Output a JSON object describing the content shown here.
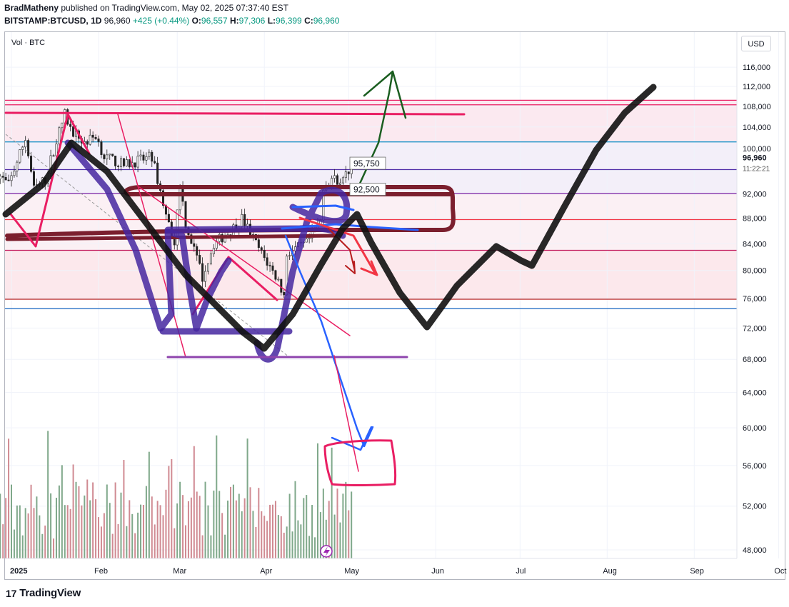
{
  "header": {
    "author": "BradMatheny",
    "publish_text": "published on TradingView.com, May 02, 2025 07:37:40 EST",
    "symbol": "BITSTAMP:BTCUSD, 1D",
    "last": "96,960",
    "change": "+425 (+0.44%)",
    "o_label": "O:",
    "o_val": "96,557",
    "h_label": "H:",
    "h_val": "97,306",
    "l_label": "L:",
    "l_val": "96,399",
    "c_label": "C:",
    "c_val": "96,960"
  },
  "volume_label": "Vol · BTC",
  "currency_button": "USD",
  "brand": "TradingView",
  "colors": {
    "up": "#089981",
    "down": "#f23645",
    "volume_up": "#7fa88a",
    "volume_down": "#d08a92",
    "zone_pink": "#fce8ef",
    "zone_lavender": "#f1eef9"
  },
  "chart_data": {
    "type": "candlestick",
    "title": "",
    "ylabel": "",
    "xlabel": "",
    "y_scale": "log",
    "ylim": [
      46500,
      118000
    ],
    "y_ticks": [
      48000,
      52000,
      56000,
      60000,
      64000,
      68000,
      72000,
      76000,
      80000,
      84000,
      88000,
      92000,
      96000,
      100000,
      104000,
      108000,
      112000,
      116000
    ],
    "y_tick_labels": [
      "48,000",
      "52,000",
      "56,000",
      "60,000",
      "64,000",
      "68,000",
      "72,000",
      "76,000",
      "80,000",
      "84,000",
      "88,000",
      "92,000",
      "",
      "100,000",
      "104,000",
      "108,000",
      "112,000",
      "116,000"
    ],
    "x_ticks": [
      "2025",
      "Feb",
      "Mar",
      "Apr",
      "May",
      "Jun",
      "Jul",
      "Aug",
      "Sep",
      "Oct"
    ],
    "x_range": [
      "2024-12-27",
      "2025-10-12"
    ],
    "last_price": {
      "label": "96,960",
      "countdown": "11:22:21",
      "value": 96960
    },
    "price_labels": [
      {
        "text": "95,750",
        "value": 95750
      },
      {
        "text": "92,500",
        "value": 92500
      }
    ],
    "horizontal_levels": [
      {
        "value": 109200,
        "color": "#e91e63"
      },
      {
        "value": 108300,
        "color": "#e91e63"
      },
      {
        "value": 101200,
        "color": "#2196c8"
      },
      {
        "value": 96200,
        "color": "#512da8"
      },
      {
        "value": 92100,
        "color": "#7b1fa2"
      },
      {
        "value": 87800,
        "color": "#f23645"
      },
      {
        "value": 83000,
        "color": "#c2185b"
      },
      {
        "value": 75900,
        "color": "#b71c1c"
      },
      {
        "value": 74600,
        "color": "#1565c0"
      }
    ],
    "candles_summary": {
      "start_date": "2024-12-27",
      "end_date": "2025-05-02",
      "low": 74500,
      "high": 109300,
      "last_close": 96960
    },
    "volume_summary": {
      "bars": 127,
      "max_relative": 1.0
    },
    "annotations": [
      {
        "type": "projection",
        "color": "#111111",
        "path_dates": [
          "2025-05-13",
          "2025-06-04",
          "2025-06-20",
          "2025-07-02",
          "2025-09-10"
        ],
        "path_values": [
          94000,
          79000,
          86000,
          88000,
          112000
        ]
      },
      {
        "type": "arrow",
        "color": "#1b5e20",
        "target_value": 114000
      },
      {
        "type": "arrow",
        "color": "#3d5afe",
        "target_value": 62000
      },
      {
        "type": "box",
        "color": "#e91e63",
        "range": [
          58000,
          63500
        ]
      }
    ]
  }
}
